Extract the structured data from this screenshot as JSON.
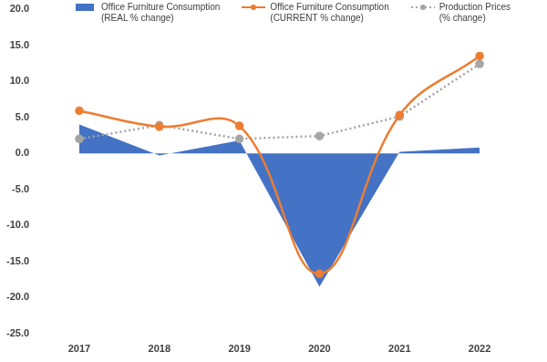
{
  "chart_data": {
    "type": "line",
    "categories": [
      "2017",
      "2018",
      "2019",
      "2020",
      "2021",
      "2022"
    ],
    "series": [
      {
        "name": "Office Furniture Consumption\n(REAL % change)",
        "type": "area",
        "color": "#4472c4",
        "values": [
          4.0,
          -0.3,
          1.8,
          -18.5,
          0.2,
          0.8
        ]
      },
      {
        "name": "Office Furniture Consumption\n(CURRENT % change)",
        "type": "line",
        "color": "#ed7d31",
        "marker": "circle",
        "line_style": "solid",
        "values": [
          5.9,
          3.7,
          3.8,
          -16.7,
          5.3,
          13.5
        ]
      },
      {
        "name": "Production Prices\n(% change)",
        "type": "line",
        "color": "#a5a5a5",
        "marker": "circle",
        "line_style": "dotted",
        "values": [
          2.0,
          3.9,
          2.0,
          2.4,
          5.1,
          12.4
        ]
      }
    ],
    "ylim": [
      -25,
      20
    ],
    "yticks": [
      {
        "value": -25,
        "label": "-25.0"
      },
      {
        "value": -20,
        "label": "-20.0"
      },
      {
        "value": -15,
        "label": "-15.0"
      },
      {
        "value": -10,
        "label": "-10.0"
      },
      {
        "value": -5,
        "label": "-5.0"
      },
      {
        "value": 0,
        "label": "0.0"
      },
      {
        "value": 5,
        "label": "5.0"
      },
      {
        "value": 10,
        "label": "10.0"
      },
      {
        "value": 15,
        "label": "15.0"
      },
      {
        "value": 20,
        "label": "20.0"
      }
    ],
    "grid": false,
    "legend": "top"
  }
}
